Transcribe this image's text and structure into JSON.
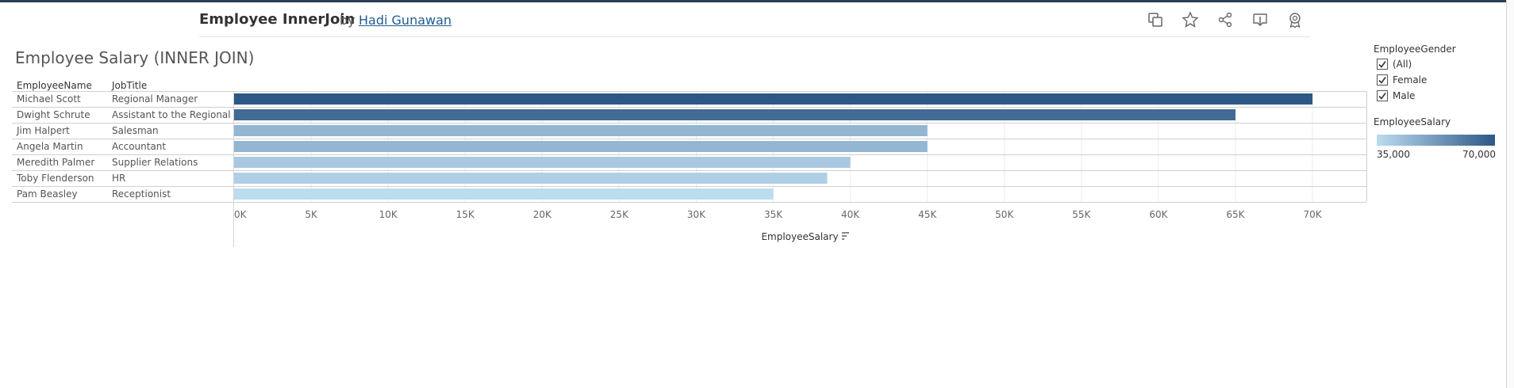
{
  "header": {
    "title": "Employee InnerJoin",
    "by": "by",
    "author": "Hadi Gunawan"
  },
  "toolbar": {
    "icons": [
      "duplicate-icon",
      "favorite-star-icon",
      "share-icon",
      "download-icon",
      "badge-icon"
    ]
  },
  "columns": {
    "name_header": "EmployeeName",
    "job_header": "JobTitle"
  },
  "legend": {
    "filter_title": "EmployeeGender",
    "filter_items": [
      "(All)",
      "Female",
      "Male"
    ],
    "color_title": "EmployeeSalary",
    "color_min_label": "35,000",
    "color_max_label": "70,000"
  },
  "colors": {
    "low": "#bcdcf0",
    "high": "#2d5886",
    "grid": "#ececec",
    "row_line": "#d0d0d0"
  },
  "chart_data": {
    "type": "bar",
    "orientation": "horizontal",
    "title": "Employee Salary (INNER JOIN)",
    "xlabel": "EmployeeSalary",
    "xlim": [
      0,
      73500
    ],
    "tick_values": [
      0,
      5000,
      10000,
      15000,
      20000,
      25000,
      30000,
      35000,
      40000,
      45000,
      50000,
      55000,
      60000,
      65000,
      70000
    ],
    "tick_labels": [
      "0K",
      "5K",
      "10K",
      "15K",
      "20K",
      "25K",
      "30K",
      "35K",
      "40K",
      "45K",
      "50K",
      "55K",
      "60K",
      "65K",
      "70K"
    ],
    "rows": [
      {
        "name": "Michael Scott",
        "job": "Regional Manager",
        "salary": 70000
      },
      {
        "name": "Dwight Schrute",
        "job": "Assistant to the Regional ..",
        "salary": 65000
      },
      {
        "name": "Jim Halpert",
        "job": "Salesman",
        "salary": 45000
      },
      {
        "name": "Angela Martin",
        "job": "Accountant",
        "salary": 45000
      },
      {
        "name": "Meredith Palmer",
        "job": "Supplier Relations",
        "salary": 40000
      },
      {
        "name": "Toby Flenderson",
        "job": "HR",
        "salary": 38500
      },
      {
        "name": "Pam Beasley",
        "job": "Receptionist",
        "salary": 35000
      }
    ],
    "color_range": [
      35000,
      70000
    ],
    "grid": true
  }
}
